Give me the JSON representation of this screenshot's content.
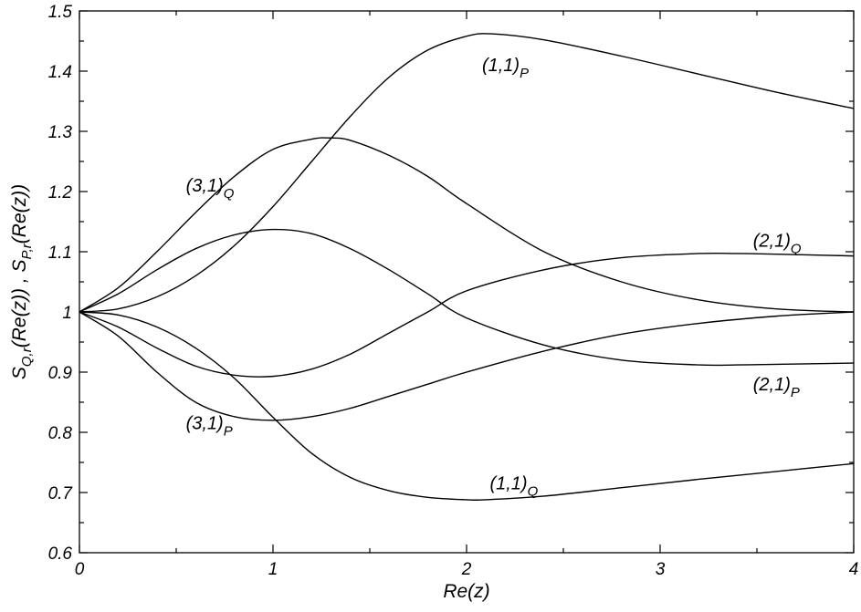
{
  "chart_data": {
    "type": "line",
    "xlabel": "Re(z)",
    "ylabel": "S_{Q,r}(Re(z)) ,  S_{P,r}(Re(z))",
    "xlim": [
      0,
      4
    ],
    "ylim": [
      0.6,
      1.5
    ],
    "x_ticks": [
      0,
      1,
      2,
      3,
      4
    ],
    "x_tick_labels": [
      "0",
      "1",
      "2",
      "3",
      "4"
    ],
    "y_ticks": [
      0.6,
      0.7,
      0.8,
      0.9,
      1.0,
      1.1,
      1.2,
      1.3,
      1.4,
      1.5
    ],
    "y_tick_labels": [
      "0.6",
      "0.7",
      "0.8",
      "0.9",
      "1",
      "1.1",
      "1.2",
      "1.3",
      "1.4",
      "1.5"
    ],
    "grid": false,
    "legend": "none",
    "series": [
      {
        "name": "(1,1)_P",
        "x": [
          0,
          0.2,
          0.4,
          0.6,
          0.8,
          1.0,
          1.2,
          1.4,
          1.6,
          1.8,
          2.0,
          2.13,
          2.4,
          2.8,
          3.2,
          3.6,
          4.0
        ],
        "y": [
          1.0,
          1.005,
          1.025,
          1.06,
          1.11,
          1.175,
          1.25,
          1.325,
          1.39,
          1.435,
          1.458,
          1.462,
          1.452,
          1.425,
          1.395,
          1.365,
          1.338
        ]
      },
      {
        "name": "(1,1)_Q",
        "x": [
          0,
          0.2,
          0.4,
          0.6,
          0.8,
          1.0,
          1.2,
          1.4,
          1.6,
          1.8,
          2.0,
          2.1,
          2.4,
          2.8,
          3.2,
          3.6,
          4.0
        ],
        "y": [
          1.0,
          0.995,
          0.975,
          0.94,
          0.89,
          0.825,
          0.765,
          0.725,
          0.703,
          0.692,
          0.688,
          0.688,
          0.694,
          0.708,
          0.722,
          0.735,
          0.748
        ]
      },
      {
        "name": "(2,1)_Q",
        "x": [
          0,
          0.2,
          0.4,
          0.6,
          0.8,
          1.0,
          1.2,
          1.4,
          1.6,
          1.8,
          2.0,
          2.4,
          2.8,
          3.2,
          3.4,
          3.6,
          4.0
        ],
        "y": [
          1.0,
          0.975,
          0.94,
          0.91,
          0.895,
          0.893,
          0.905,
          0.93,
          0.965,
          1.0,
          1.035,
          1.07,
          1.09,
          1.097,
          1.097,
          1.096,
          1.093
        ]
      },
      {
        "name": "(2,1)_P",
        "x": [
          0,
          0.2,
          0.4,
          0.6,
          0.8,
          1.0,
          1.2,
          1.4,
          1.6,
          1.8,
          2.0,
          2.4,
          2.8,
          3.2,
          3.4,
          3.6,
          4.0
        ],
        "y": [
          1.0,
          1.03,
          1.07,
          1.105,
          1.128,
          1.137,
          1.13,
          1.105,
          1.07,
          1.03,
          0.99,
          0.945,
          0.92,
          0.912,
          0.912,
          0.913,
          0.915
        ]
      },
      {
        "name": "(3,1)_Q",
        "x": [
          0,
          0.2,
          0.4,
          0.6,
          0.8,
          1.0,
          1.2,
          1.3,
          1.4,
          1.6,
          1.8,
          2.0,
          2.4,
          2.8,
          3.2,
          3.6,
          4.0
        ],
        "y": [
          1.0,
          1.04,
          1.1,
          1.165,
          1.225,
          1.27,
          1.287,
          1.289,
          1.285,
          1.26,
          1.225,
          1.18,
          1.1,
          1.05,
          1.02,
          1.005,
          1.0
        ]
      },
      {
        "name": "(3,1)_P",
        "x": [
          0,
          0.2,
          0.4,
          0.6,
          0.8,
          1.0,
          1.2,
          1.4,
          1.6,
          1.8,
          2.0,
          2.4,
          2.8,
          3.2,
          3.6,
          4.0
        ],
        "y": [
          1.0,
          0.96,
          0.9,
          0.85,
          0.826,
          0.82,
          0.826,
          0.84,
          0.86,
          0.88,
          0.9,
          0.935,
          0.963,
          0.981,
          0.993,
          1.0
        ]
      }
    ],
    "annotations": [
      {
        "series": "(1,1)_P",
        "main": "(1,1)",
        "sub": "P",
        "x": 2.08,
        "y": 1.4
      },
      {
        "series": "(1,1)_Q",
        "main": "(1,1)",
        "sub": "Q",
        "x": 2.12,
        "y": 0.705
      },
      {
        "series": "(2,1)_Q",
        "main": "(2,1)",
        "sub": "Q",
        "x": 3.48,
        "y": 1.108
      },
      {
        "series": "(2,1)_P",
        "main": "(2,1)",
        "sub": "P",
        "x": 3.48,
        "y": 0.87
      },
      {
        "series": "(3,1)_Q",
        "main": "(3,1)",
        "sub": "Q",
        "x": 0.55,
        "y": 1.2
      },
      {
        "series": "(3,1)_P",
        "main": "(3,1)",
        "sub": "P",
        "x": 0.55,
        "y": 0.805
      }
    ]
  }
}
